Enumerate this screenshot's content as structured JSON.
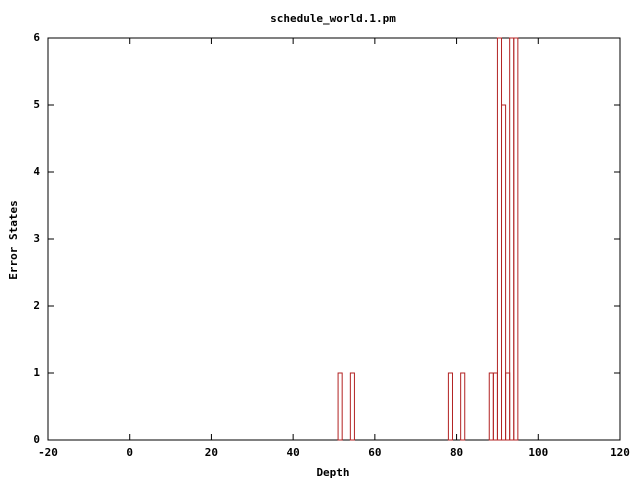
{
  "chart_data": {
    "type": "histogram",
    "title": "schedule_world.1.pm",
    "x_label": "Depth",
    "y_label": "Error States",
    "bins": [
      50,
      51,
      52,
      53,
      54,
      55,
      56,
      57,
      58,
      59,
      60,
      61,
      62,
      63,
      64,
      65,
      66,
      67,
      68,
      69,
      70,
      71,
      72,
      73,
      74,
      75,
      76,
      77,
      78,
      79,
      80,
      81,
      82,
      83,
      84,
      85,
      86,
      87,
      88,
      89,
      90,
      91,
      92,
      93,
      94,
      95
    ],
    "values": [
      0,
      1,
      0,
      0,
      1,
      0,
      0,
      0,
      0,
      0,
      0,
      0,
      0,
      0,
      0,
      0,
      0,
      0,
      0,
      0,
      0,
      0,
      0,
      0,
      0,
      0,
      0,
      0,
      1,
      0,
      0,
      1,
      0,
      0,
      0,
      0,
      0,
      0,
      1,
      1,
      6,
      5,
      1,
      6,
      6
    ],
    "color": "#b22222",
    "xlim": [
      -20,
      120
    ],
    "xticks": [
      -20,
      0,
      20,
      40,
      60,
      80,
      100,
      120
    ],
    "ylim": [
      0,
      6
    ],
    "yticks": [
      0,
      1,
      2,
      3,
      4,
      5,
      6
    ]
  }
}
